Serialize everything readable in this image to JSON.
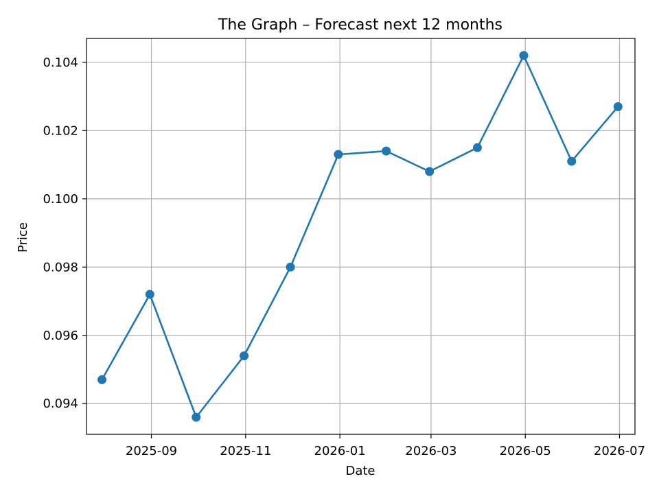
{
  "chart_data": {
    "type": "line",
    "title": "The Graph – Forecast next 12 months",
    "xlabel": "Date",
    "ylabel": "Price",
    "grid": true,
    "marker": "circle",
    "line_color": "#1f77b4",
    "x_tick_labels": [
      "2025-09",
      "2025-11",
      "2026-01",
      "2026-03",
      "2026-05",
      "2026-07"
    ],
    "y_tick_labels": [
      "0.094",
      "0.096",
      "0.098",
      "0.100",
      "0.102",
      "0.104"
    ],
    "xlim": [
      "2025-07-21",
      "2026-07-11"
    ],
    "ylim": [
      0.0931,
      0.1047
    ],
    "series": [
      {
        "x": [
          "2025-07-31",
          "2025-08-31",
          "2025-09-30",
          "2025-10-31",
          "2025-11-30",
          "2025-12-31",
          "2026-01-31",
          "2026-02-28",
          "2026-03-31",
          "2026-04-30",
          "2026-05-31",
          "2026-06-30"
        ],
        "values": [
          0.0947,
          0.0972,
          0.0936,
          0.0954,
          0.098,
          0.1013,
          0.1014,
          0.1008,
          0.1015,
          0.1042,
          0.1011,
          0.1027
        ]
      }
    ]
  }
}
